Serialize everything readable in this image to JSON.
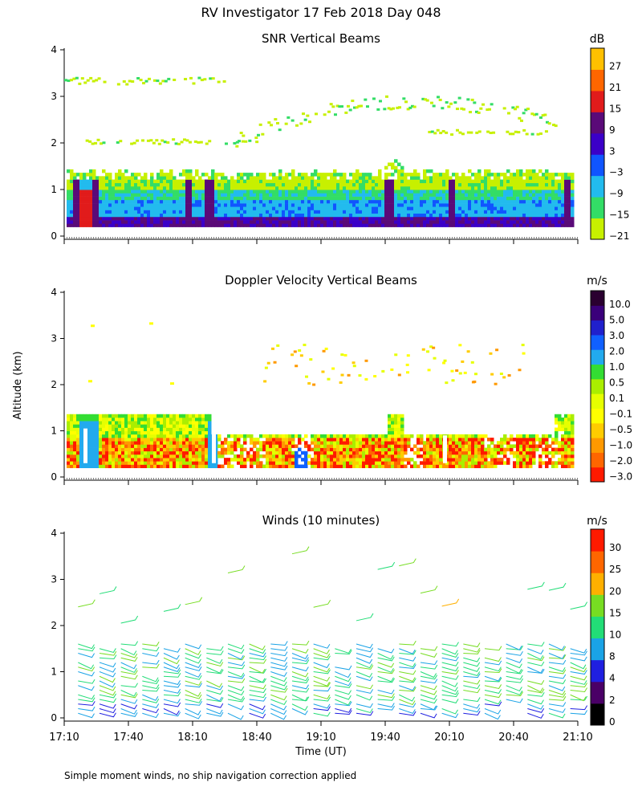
{
  "header": {
    "title": "RV Investigator  17 Feb 2018 Day 048"
  },
  "footer": {
    "note": "Simple moment winds, no ship navigation correction applied"
  },
  "colors": {
    "snr_scale": [
      "#c7f000",
      "#33dd66",
      "#22bbee",
      "#1055ff",
      "#3b00c8",
      "#5a0a78",
      "#e11b1b",
      "#ff6600",
      "#ffc000"
    ],
    "velocity_scale": [
      "#ff1a00",
      "#ff6600",
      "#ff9900",
      "#ffcc00",
      "#ffff00",
      "#e6ff00",
      "#aaee00",
      "#33dd33",
      "#22aaee",
      "#1060ff",
      "#2020cc",
      "#3a007a",
      "#2a0030"
    ],
    "wind_scale": [
      "#000000",
      "#4a0066",
      "#1f1fe0",
      "#1aa3e6",
      "#22dd77",
      "#77dd22",
      "#ffb000",
      "#ff6600",
      "#ff1a00"
    ]
  },
  "chart_data": [
    {
      "type": "heatmap",
      "title": "SNR Vertical Beams",
      "ylabel": "",
      "ylim": [
        0,
        4
      ],
      "yticks": [
        "0",
        "1",
        "2",
        "3",
        "4"
      ],
      "colorbar": {
        "unit": "dB",
        "labels": [
          "27",
          "21",
          "15",
          "9",
          "3",
          "−3",
          "−9",
          "−15",
          "−21"
        ]
      },
      "bands": [
        {
          "alt_from": 0.2,
          "alt_to": 0.35,
          "level": 5
        },
        {
          "alt_from": 0.35,
          "alt_to": 0.8,
          "level": 2
        },
        {
          "alt_from": 0.8,
          "alt_to": 1.05,
          "level": 1
        },
        {
          "alt_from": 1.05,
          "alt_to": 1.4,
          "level": 0
        }
      ],
      "features": [
        {
          "type": "speckle_layer",
          "alt": 3.3,
          "t_from": "17:10",
          "t_to": "18:25",
          "level": 0
        },
        {
          "type": "arc_layer",
          "alt": 2.6,
          "t_from": "18:30",
          "t_to": "21:00",
          "level": 1
        },
        {
          "type": "speckle_layer",
          "alt": 2.0,
          "t_from": "17:20",
          "t_to": "18:40",
          "level": 0
        },
        {
          "type": "speckle_layer",
          "alt": 2.2,
          "t_from": "20:00",
          "t_to": "20:55",
          "level": 0
        }
      ]
    },
    {
      "type": "heatmap",
      "title": "Doppler Velocity Vertical Beams",
      "ylabel": "Altitude (km)",
      "ylim": [
        0,
        4
      ],
      "yticks": [
        "0",
        "1",
        "2",
        "3",
        "4"
      ],
      "colorbar": {
        "unit": "m/s",
        "labels": [
          "10.0",
          "5.0",
          "3.0",
          "2.0",
          "1.0",
          "0.5",
          "0.1",
          "−0.1",
          "−0.5",
          "−1.0",
          "−2.0",
          "−3.0"
        ]
      },
      "bands": [
        {
          "alt_from": 0.2,
          "alt_to": 0.85,
          "level": 1
        },
        {
          "alt_from": 0.85,
          "alt_to": 1.35,
          "level": 6
        }
      ],
      "features": [
        {
          "type": "updraft",
          "t_from": "17:13",
          "t_to": "17:24",
          "level": 8
        },
        {
          "type": "updraft",
          "t_from": "18:20",
          "t_to": "18:24",
          "level": 8
        },
        {
          "type": "scatter_layer",
          "alt": 2.5,
          "t_from": "18:40",
          "t_to": "20:45",
          "level": 4
        }
      ]
    },
    {
      "type": "wind_barbs",
      "title": "Winds (10 minutes)",
      "xlabel": "Time (UT)",
      "ylabel": "",
      "ylim": [
        0,
        4
      ],
      "yticks": [
        "0",
        "1",
        "2",
        "3",
        "4"
      ],
      "x_tick_labels": [
        "17:10",
        "17:40",
        "18:10",
        "18:40",
        "19:10",
        "19:40",
        "20:10",
        "20:40",
        "21:10"
      ],
      "colorbar": {
        "unit": "m/s",
        "labels": [
          "30",
          "25",
          "20",
          "15",
          "10",
          "8",
          "4",
          "2",
          "0"
        ]
      },
      "times": [
        "17:15",
        "17:25",
        "17:35",
        "17:45",
        "17:55",
        "18:05",
        "18:15",
        "18:25",
        "18:35",
        "18:45",
        "18:55",
        "19:05",
        "19:15",
        "19:25",
        "19:35",
        "19:45",
        "19:55",
        "20:05",
        "20:15",
        "20:25",
        "20:35",
        "20:45",
        "20:55",
        "21:05"
      ],
      "speed_range_ms": [
        0,
        30
      ]
    }
  ]
}
